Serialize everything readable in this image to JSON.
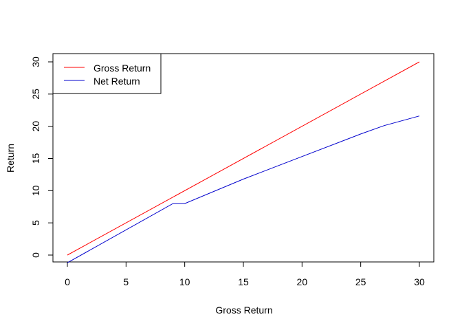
{
  "chart_data": {
    "type": "line",
    "title": "",
    "xlabel": "Gross Return",
    "ylabel": "Return",
    "xlim": [
      0,
      30
    ],
    "ylim": [
      -1.2,
      30
    ],
    "xticks": [
      0,
      5,
      10,
      15,
      20,
      25,
      30
    ],
    "yticks": [
      0,
      5,
      10,
      15,
      20,
      25,
      30
    ],
    "grid": false,
    "legend_position": "top-left",
    "series": [
      {
        "name": "Gross Return",
        "color": "#ff0000",
        "x": [
          0,
          30
        ],
        "y": [
          0,
          30
        ]
      },
      {
        "name": "Net Return",
        "color": "#0000cd",
        "x": [
          0,
          9,
          10,
          15,
          20,
          25,
          27,
          30
        ],
        "y": [
          -1.2,
          8.0,
          8.0,
          11.8,
          15.3,
          18.8,
          20.1,
          21.6
        ]
      }
    ]
  }
}
